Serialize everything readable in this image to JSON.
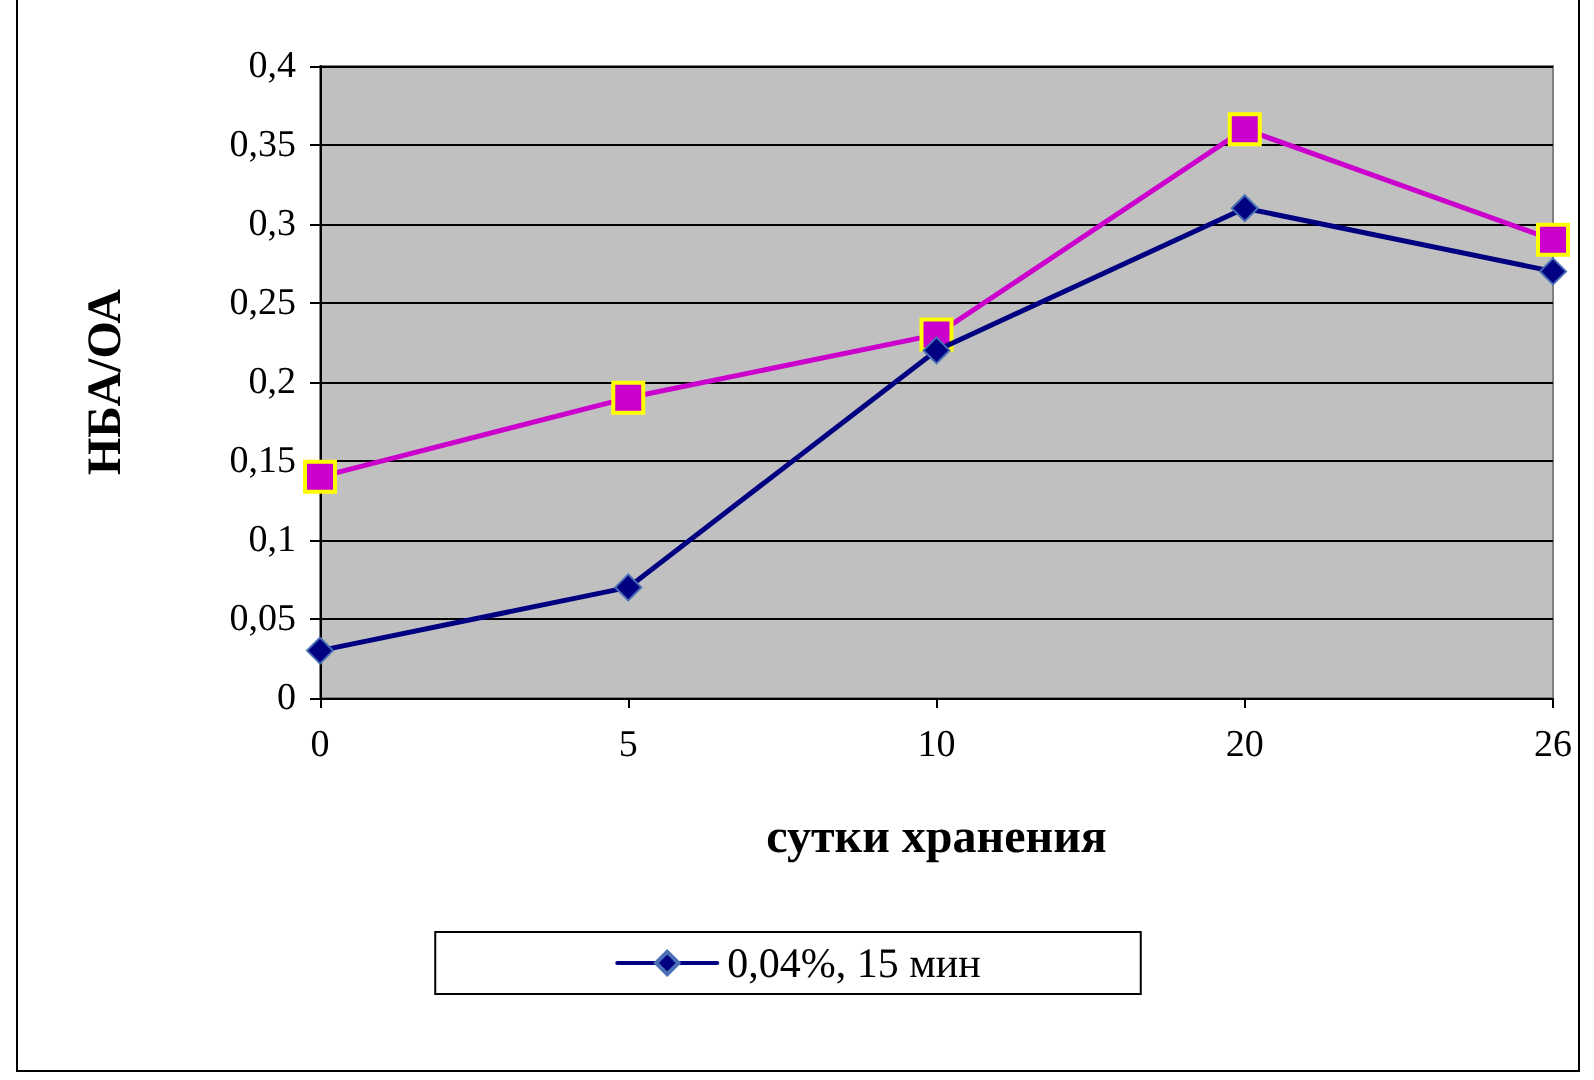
{
  "chart_data": {
    "type": "line",
    "xlabel": "сутки хранения",
    "ylabel": "НБА/ОА",
    "categories": [
      "0",
      "5",
      "10",
      "20",
      "26"
    ],
    "series": [
      {
        "name": "0,04%, 15 мин",
        "color": "#000080",
        "marker": "diamond",
        "values": [
          0.03,
          0.07,
          0.22,
          0.31,
          0.27
        ]
      },
      {
        "color": "#cc00cc",
        "marker": "square",
        "values": [
          0.14,
          0.19,
          0.23,
          0.36,
          0.29
        ]
      }
    ],
    "ylim": [
      0,
      0.4
    ],
    "yticks": [
      {
        "value": 0,
        "label": "0"
      },
      {
        "value": 0.05,
        "label": "0,05"
      },
      {
        "value": 0.1,
        "label": "0,1"
      },
      {
        "value": 0.15,
        "label": "0,15"
      },
      {
        "value": 0.2,
        "label": "0,2"
      },
      {
        "value": 0.25,
        "label": "0,25"
      },
      {
        "value": 0.3,
        "label": "0,3"
      },
      {
        "value": 0.35,
        "label": "0,35"
      },
      {
        "value": 0.4,
        "label": "0,4"
      }
    ],
    "grid": "y",
    "legend": "bottom",
    "line_style": "solid"
  }
}
